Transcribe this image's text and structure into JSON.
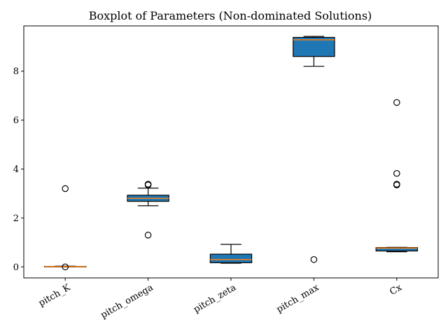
{
  "chart_data": {
    "type": "boxplot",
    "title": "Boxplot of Parameters (Non-dominated Solutions)",
    "xlabel": "",
    "ylabel": "",
    "ylim": [
      -0.45,
      9.85
    ],
    "yticks": [
      0,
      2,
      4,
      6,
      8
    ],
    "grid": false,
    "box_color": "#1f77b4",
    "median_color": "#ff7f0e",
    "categories": [
      "pitch_K",
      "pitch_omega",
      "pitch_zeta",
      "pitch_max",
      "Cx"
    ],
    "boxes": [
      {
        "name": "pitch_K",
        "whisker_low": 0.0,
        "q1": 0.0,
        "median": 0.01,
        "q3": 0.02,
        "whisker_high": 0.03,
        "outliers": [
          3.2,
          0.0
        ]
      },
      {
        "name": "pitch_omega",
        "whisker_low": 2.5,
        "q1": 2.68,
        "median": 2.8,
        "q3": 2.93,
        "whisker_high": 3.22,
        "outliers": [
          3.35,
          3.38,
          1.3
        ]
      },
      {
        "name": "pitch_zeta",
        "whisker_low": 0.15,
        "q1": 0.17,
        "median": 0.3,
        "q3": 0.52,
        "whisker_high": 0.92,
        "outliers": []
      },
      {
        "name": "pitch_max",
        "whisker_low": 8.2,
        "q1": 8.6,
        "median": 9.28,
        "q3": 9.38,
        "whisker_high": 9.42,
        "outliers": [
          0.3
        ]
      },
      {
        "name": "Cx",
        "whisker_low": 0.62,
        "q1": 0.65,
        "median": 0.77,
        "q3": 0.79,
        "whisker_high": 0.8,
        "outliers": [
          6.72,
          3.82,
          3.38,
          3.35
        ]
      }
    ]
  }
}
